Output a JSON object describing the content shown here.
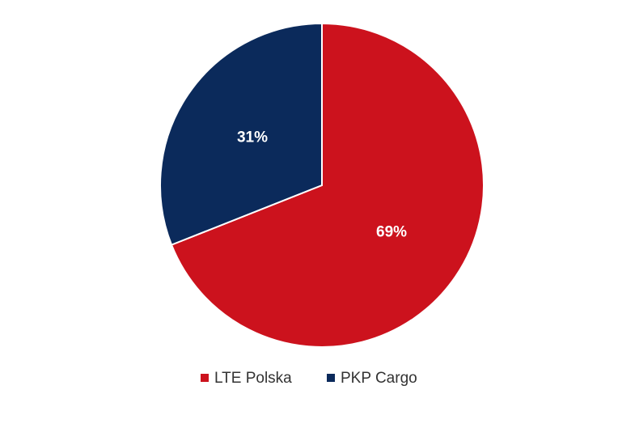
{
  "chart_data": {
    "type": "pie",
    "categories": [
      "LTE Polska",
      "PKP Cargo"
    ],
    "values": [
      69,
      31
    ],
    "value_labels": [
      "69%",
      "31%"
    ],
    "colors": [
      "#cc121d",
      "#0b2a5b"
    ]
  }
}
